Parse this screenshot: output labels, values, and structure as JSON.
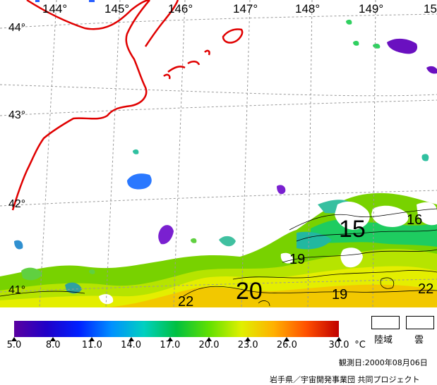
{
  "map": {
    "longitude_labels": [
      "144°",
      "145°",
      "146°",
      "147°",
      "148°",
      "149°",
      "15"
    ],
    "latitude_labels": [
      "44°",
      "43°",
      "42°",
      "41°"
    ],
    "contour_labels": [
      "15",
      "16",
      "19",
      "19",
      "20",
      "22",
      "22"
    ],
    "colors": {
      "coastline": "#e00000",
      "grid": "#999999",
      "land": "#ffffff"
    }
  },
  "colorbar": {
    "tick_labels": [
      "5.0",
      "8.0",
      "11.0",
      "14.0",
      "17.0",
      "20.0",
      "23.0",
      "26.0",
      "30.0"
    ],
    "tick_values": [
      5,
      8,
      11,
      14,
      17,
      20,
      23,
      26,
      30
    ],
    "unit": "°C",
    "min": 5,
    "max": 30
  },
  "legend": {
    "land_label": "陸域",
    "cloud_label": "雲"
  },
  "observation_date": "観測日:2000年08月06日",
  "credit": "岩手県／宇宙開発事業団 共同プロジェクト"
}
